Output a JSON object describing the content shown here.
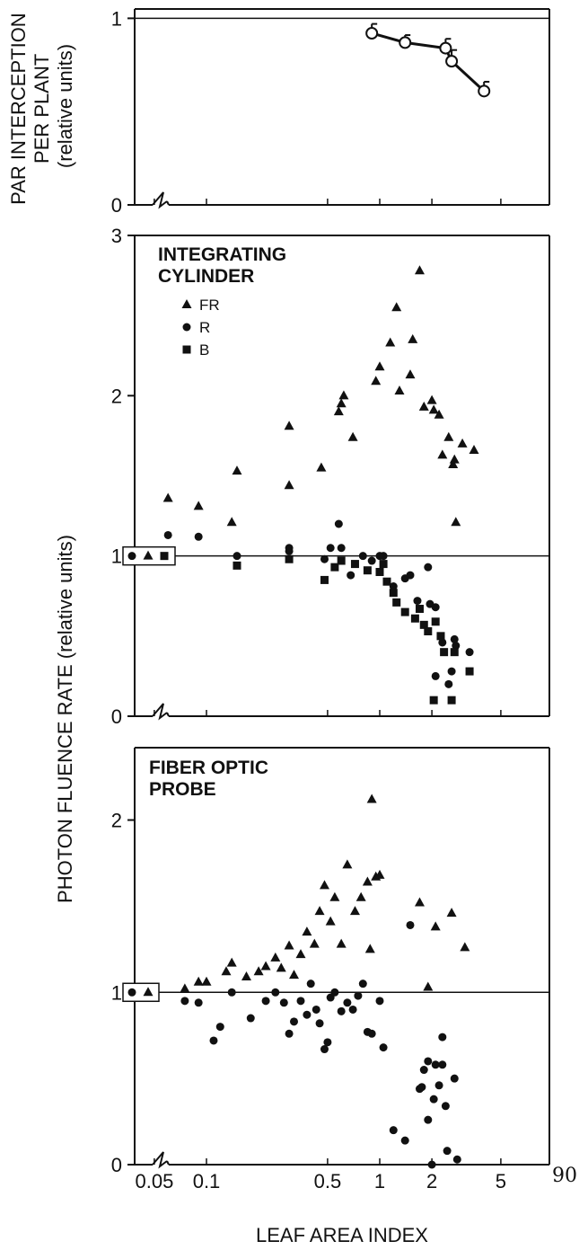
{
  "ylabel_top": "PAR INTERCEPTION PER PLANT (relative units)",
  "ylabel_top_lines": [
    "PAR INTERCEPTION",
    "PER PLANT",
    "(relative units)"
  ],
  "ylabel_main": "PHOTON FLUENCE RATE (relative units)",
  "xlabel": "LEAF AREA INDEX",
  "page_number": "90",
  "chart_data": [
    {
      "type": "line",
      "panel": "top",
      "title": "",
      "ylim": [
        0,
        1.05
      ],
      "yticks": [
        "0",
        "1"
      ],
      "x_scale": "log",
      "reference_line": 1,
      "axis_break": true,
      "series": [
        {
          "marker": "open-circle",
          "connected": true,
          "error_bars": true,
          "points": [
            {
              "x": 0.9,
              "y": 0.92,
              "err": 0.05
            },
            {
              "x": 1.4,
              "y": 0.87,
              "err": 0.04
            },
            {
              "x": 2.4,
              "y": 0.84,
              "err": 0.05
            },
            {
              "x": 2.6,
              "y": 0.77,
              "err": 0.06
            },
            {
              "x": 4.0,
              "y": 0.61,
              "err": 0.05
            }
          ]
        }
      ]
    },
    {
      "type": "scatter",
      "panel": "middle",
      "title": "INTEGRATING CYLINDER",
      "ylim": [
        0,
        3
      ],
      "yticks": [
        "0",
        "1",
        "2",
        "3"
      ],
      "x_scale": "log",
      "reference_line": 1,
      "axis_break": true,
      "control_boxed": true,
      "legend_position": "top-left",
      "series": [
        {
          "name": "FR",
          "marker": "triangle",
          "points": [
            [
              0.06,
              1.36
            ],
            [
              0.09,
              1.31
            ],
            [
              0.14,
              1.21
            ],
            [
              0.15,
              1.53
            ],
            [
              0.3,
              1.81
            ],
            [
              0.3,
              1.44
            ],
            [
              0.46,
              1.55
            ],
            [
              0.58,
              1.9
            ],
            [
              0.6,
              1.95
            ],
            [
              0.62,
              2.0
            ],
            [
              0.7,
              1.74
            ],
            [
              0.95,
              2.09
            ],
            [
              1.0,
              2.18
            ],
            [
              1.15,
              2.33
            ],
            [
              1.25,
              2.55
            ],
            [
              1.3,
              2.03
            ],
            [
              1.5,
              2.13
            ],
            [
              1.55,
              2.35
            ],
            [
              1.7,
              2.78
            ],
            [
              1.8,
              1.93
            ],
            [
              2.0,
              1.97
            ],
            [
              2.05,
              1.91
            ],
            [
              2.2,
              1.88
            ],
            [
              2.3,
              1.63
            ],
            [
              2.5,
              1.74
            ],
            [
              2.65,
              1.57
            ],
            [
              2.7,
              1.6
            ],
            [
              2.75,
              1.21
            ],
            [
              3.0,
              1.7
            ],
            [
              3.5,
              1.66
            ]
          ]
        },
        {
          "name": "R",
          "marker": "circle",
          "points": [
            [
              0.06,
              1.13
            ],
            [
              0.09,
              1.12
            ],
            [
              0.15,
              1.0
            ],
            [
              0.3,
              1.05
            ],
            [
              0.3,
              1.03
            ],
            [
              0.48,
              0.98
            ],
            [
              0.52,
              1.05
            ],
            [
              0.58,
              1.2
            ],
            [
              0.6,
              1.05
            ],
            [
              0.68,
              0.88
            ],
            [
              0.8,
              1.0
            ],
            [
              0.9,
              0.97
            ],
            [
              1.0,
              1.0
            ],
            [
              1.05,
              1.0
            ],
            [
              1.2,
              0.81
            ],
            [
              1.4,
              0.86
            ],
            [
              1.5,
              0.88
            ],
            [
              1.65,
              0.72
            ],
            [
              1.9,
              0.93
            ],
            [
              1.95,
              0.7
            ],
            [
              2.1,
              0.68
            ],
            [
              2.1,
              0.25
            ],
            [
              2.3,
              0.46
            ],
            [
              2.5,
              0.2
            ],
            [
              2.6,
              0.28
            ],
            [
              2.7,
              0.48
            ],
            [
              2.75,
              0.44
            ],
            [
              3.3,
              0.4
            ]
          ]
        },
        {
          "name": "B",
          "marker": "square",
          "points": [
            [
              0.15,
              0.94
            ],
            [
              0.3,
              0.98
            ],
            [
              0.48,
              0.85
            ],
            [
              0.55,
              0.93
            ],
            [
              0.6,
              0.97
            ],
            [
              0.72,
              0.95
            ],
            [
              0.85,
              0.91
            ],
            [
              1.0,
              0.9
            ],
            [
              1.05,
              0.95
            ],
            [
              1.1,
              0.84
            ],
            [
              1.2,
              0.77
            ],
            [
              1.25,
              0.71
            ],
            [
              1.4,
              0.65
            ],
            [
              1.6,
              0.61
            ],
            [
              1.7,
              0.67
            ],
            [
              1.8,
              0.57
            ],
            [
              1.9,
              0.53
            ],
            [
              2.05,
              0.1
            ],
            [
              2.1,
              0.59
            ],
            [
              2.25,
              0.5
            ],
            [
              2.35,
              0.4
            ],
            [
              2.6,
              0.1
            ],
            [
              2.7,
              0.4
            ],
            [
              3.3,
              0.28
            ]
          ]
        }
      ],
      "control_points": [
        {
          "series": "R",
          "y": 1.0
        },
        {
          "series": "FR",
          "y": 1.0
        },
        {
          "series": "B",
          "y": 1.0
        }
      ]
    },
    {
      "type": "scatter",
      "panel": "bottom",
      "title": "FIBER OPTIC PROBE",
      "ylim": [
        0,
        2.4
      ],
      "yticks": [
        "0",
        "1",
        "2"
      ],
      "x_scale": "log",
      "x_ticks": [
        "0.05",
        "0.1",
        "0.5",
        "1",
        "2",
        "5"
      ],
      "reference_line": 1,
      "axis_break": true,
      "control_boxed": true,
      "series": [
        {
          "name": "FR",
          "marker": "triangle",
          "points": [
            [
              0.075,
              1.02
            ],
            [
              0.09,
              1.06
            ],
            [
              0.1,
              1.06
            ],
            [
              0.13,
              1.12
            ],
            [
              0.14,
              1.17
            ],
            [
              0.17,
              1.09
            ],
            [
              0.2,
              1.12
            ],
            [
              0.22,
              1.15
            ],
            [
              0.25,
              1.2
            ],
            [
              0.27,
              1.14
            ],
            [
              0.3,
              1.27
            ],
            [
              0.32,
              1.1
            ],
            [
              0.35,
              1.22
            ],
            [
              0.38,
              1.35
            ],
            [
              0.42,
              1.28
            ],
            [
              0.45,
              1.47
            ],
            [
              0.48,
              1.62
            ],
            [
              0.52,
              1.41
            ],
            [
              0.55,
              1.55
            ],
            [
              0.6,
              1.28
            ],
            [
              0.65,
              1.74
            ],
            [
              0.72,
              1.47
            ],
            [
              0.78,
              1.55
            ],
            [
              0.85,
              1.64
            ],
            [
              0.9,
              2.12
            ],
            [
              0.95,
              1.67
            ],
            [
              1.0,
              1.68
            ],
            [
              0.88,
              1.25
            ],
            [
              1.7,
              1.52
            ],
            [
              1.9,
              1.03
            ],
            [
              2.1,
              1.38
            ],
            [
              2.6,
              1.46
            ],
            [
              3.1,
              1.26
            ]
          ]
        },
        {
          "name": "R",
          "marker": "circle",
          "points": [
            [
              0.075,
              0.95
            ],
            [
              0.09,
              0.94
            ],
            [
              0.11,
              0.72
            ],
            [
              0.12,
              0.8
            ],
            [
              0.14,
              1.0
            ],
            [
              0.18,
              0.85
            ],
            [
              0.22,
              0.95
            ],
            [
              0.25,
              1.0
            ],
            [
              0.28,
              0.94
            ],
            [
              0.3,
              0.76
            ],
            [
              0.32,
              0.83
            ],
            [
              0.35,
              0.95
            ],
            [
              0.38,
              0.87
            ],
            [
              0.4,
              1.05
            ],
            [
              0.43,
              0.9
            ],
            [
              0.45,
              0.82
            ],
            [
              0.48,
              0.67
            ],
            [
              0.5,
              0.71
            ],
            [
              0.52,
              0.97
            ],
            [
              0.55,
              1.0
            ],
            [
              0.6,
              0.89
            ],
            [
              0.65,
              0.94
            ],
            [
              0.7,
              0.9
            ],
            [
              0.75,
              0.98
            ],
            [
              0.8,
              1.05
            ],
            [
              0.85,
              0.77
            ],
            [
              0.9,
              0.76
            ],
            [
              1.0,
              0.95
            ],
            [
              1.05,
              0.68
            ],
            [
              1.2,
              0.2
            ],
            [
              1.4,
              0.14
            ],
            [
              1.5,
              1.39
            ],
            [
              1.7,
              0.44
            ],
            [
              1.75,
              0.45
            ],
            [
              1.8,
              0.55
            ],
            [
              1.9,
              0.6
            ],
            [
              1.9,
              0.26
            ],
            [
              2.0,
              0.0
            ],
            [
              2.05,
              0.38
            ],
            [
              2.1,
              0.58
            ],
            [
              2.2,
              0.46
            ],
            [
              2.3,
              0.74
            ],
            [
              2.3,
              0.58
            ],
            [
              2.4,
              0.34
            ],
            [
              2.45,
              0.08
            ],
            [
              2.7,
              0.5
            ],
            [
              2.8,
              0.03
            ]
          ]
        }
      ],
      "control_points": [
        {
          "series": "R",
          "y": 1.0
        },
        {
          "series": "FR",
          "y": 1.0
        }
      ]
    }
  ]
}
